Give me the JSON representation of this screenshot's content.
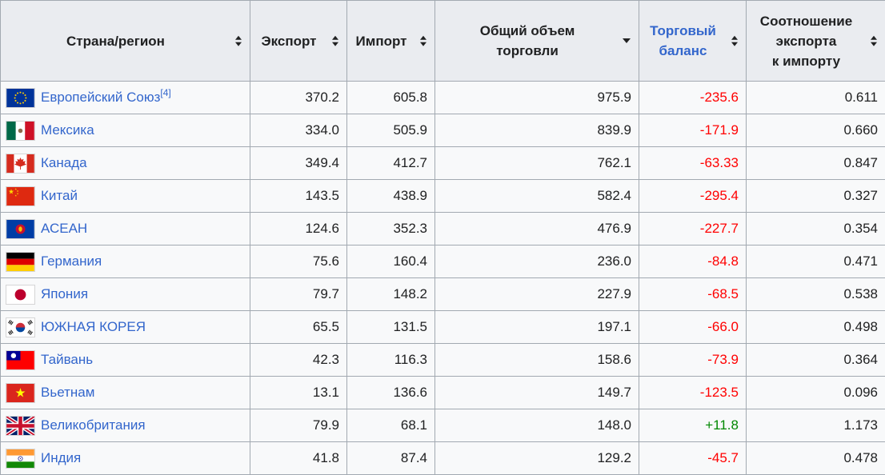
{
  "table": {
    "colors": {
      "link": "#3366cc",
      "negative": "#ff0000",
      "positive": "#008800",
      "header_bg": "#eaecf0",
      "row_bg": "#f8f9fa",
      "border": "#a2a9b1"
    },
    "columns": [
      {
        "label": "Страна/регион",
        "sort": "both"
      },
      {
        "label": "Экспорт",
        "sort": "both"
      },
      {
        "label": "Импорт",
        "sort": "both"
      },
      {
        "label": "Общий объем\nторговли",
        "sort": "desc"
      },
      {
        "label": "Торговый\nбаланс",
        "sort": "both",
        "link": true
      },
      {
        "label": "Соотношение\nэкспорта\nк импорту",
        "sort": "both"
      }
    ],
    "rows": [
      {
        "flag": "eu",
        "country": "Европейский Союз",
        "footnote": "[4]",
        "export": "370.2",
        "import": "605.8",
        "total": "975.9",
        "balance": "-235.6",
        "ratio": "0.611"
      },
      {
        "flag": "mx",
        "country": "Мексика",
        "export": "334.0",
        "import": "505.9",
        "total": "839.9",
        "balance": "-171.9",
        "ratio": "0.660"
      },
      {
        "flag": "ca",
        "country": "Канада",
        "export": "349.4",
        "import": "412.7",
        "total": "762.1",
        "balance": "-63.33",
        "ratio": "0.847"
      },
      {
        "flag": "cn",
        "country": "Китай",
        "export": "143.5",
        "import": "438.9",
        "total": "582.4",
        "balance": "-295.4",
        "ratio": "0.327"
      },
      {
        "flag": "asean",
        "country": "АСЕАН",
        "export": "124.6",
        "import": "352.3",
        "total": "476.9",
        "balance": "-227.7",
        "ratio": "0.354"
      },
      {
        "flag": "de",
        "country": "Германия",
        "export": "75.6",
        "import": "160.4",
        "total": "236.0",
        "balance": "-84.8",
        "ratio": "0.471"
      },
      {
        "flag": "jp",
        "country": "Япония",
        "export": "79.7",
        "import": "148.2",
        "total": "227.9",
        "balance": "-68.5",
        "ratio": "0.538"
      },
      {
        "flag": "kr",
        "country": "ЮЖНАЯ КОРЕЯ",
        "export": "65.5",
        "import": "131.5",
        "total": "197.1",
        "balance": "-66.0",
        "ratio": "0.498"
      },
      {
        "flag": "tw",
        "country": "Тайвань",
        "export": "42.3",
        "import": "116.3",
        "total": "158.6",
        "balance": "-73.9",
        "ratio": "0.364"
      },
      {
        "flag": "vn",
        "country": "Вьетнам",
        "export": "13.1",
        "import": "136.6",
        "total": "149.7",
        "balance": "-123.5",
        "ratio": "0.096"
      },
      {
        "flag": "gb",
        "country": "Великобритания",
        "export": "79.9",
        "import": "68.1",
        "total": "148.0",
        "balance": "+11.8",
        "ratio": "1.173"
      },
      {
        "flag": "in",
        "country": "Индия",
        "export": "41.8",
        "import": "87.4",
        "total": "129.2",
        "balance": "-45.7",
        "ratio": "0.478"
      }
    ]
  }
}
